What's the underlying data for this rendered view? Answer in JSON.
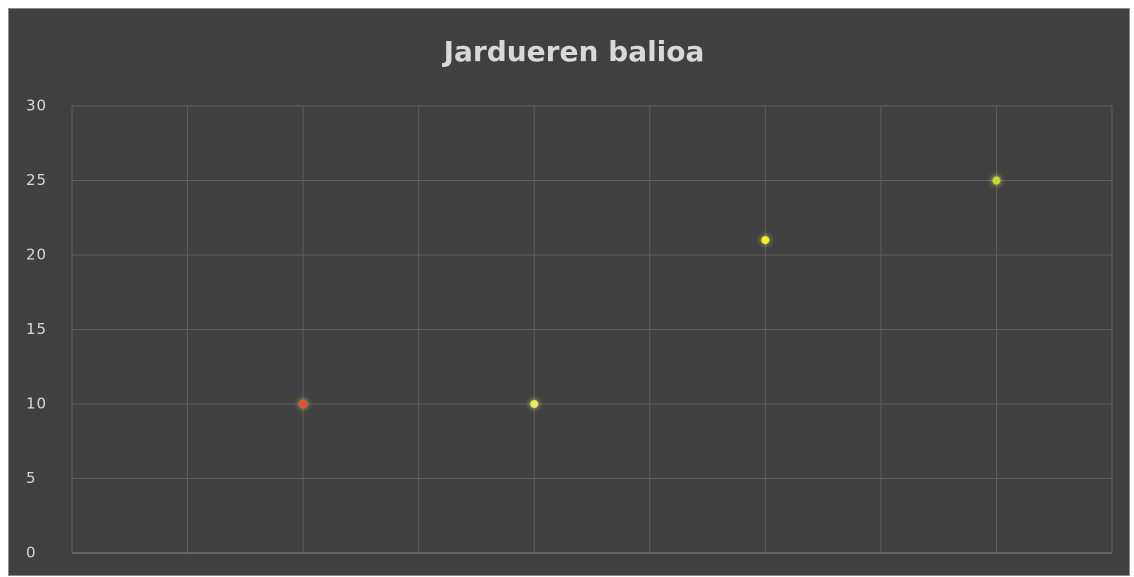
{
  "chart_data": {
    "type": "scatter",
    "title": "Jardueren balioa",
    "x": [
      2,
      4,
      6,
      8
    ],
    "values": [
      10,
      10,
      21,
      25
    ],
    "colors": [
      "#e8502a",
      "#e4ec5a",
      "#f4f41e",
      "#c8d832"
    ],
    "xlim": [
      0,
      9
    ],
    "xticks": [
      0,
      1,
      2,
      3,
      4,
      5,
      6,
      7,
      8,
      9
    ],
    "show_xtick_labels": false,
    "ylim": [
      0,
      30
    ],
    "yticks": [
      0,
      5,
      10,
      15,
      20,
      25,
      30
    ],
    "grid": true
  }
}
